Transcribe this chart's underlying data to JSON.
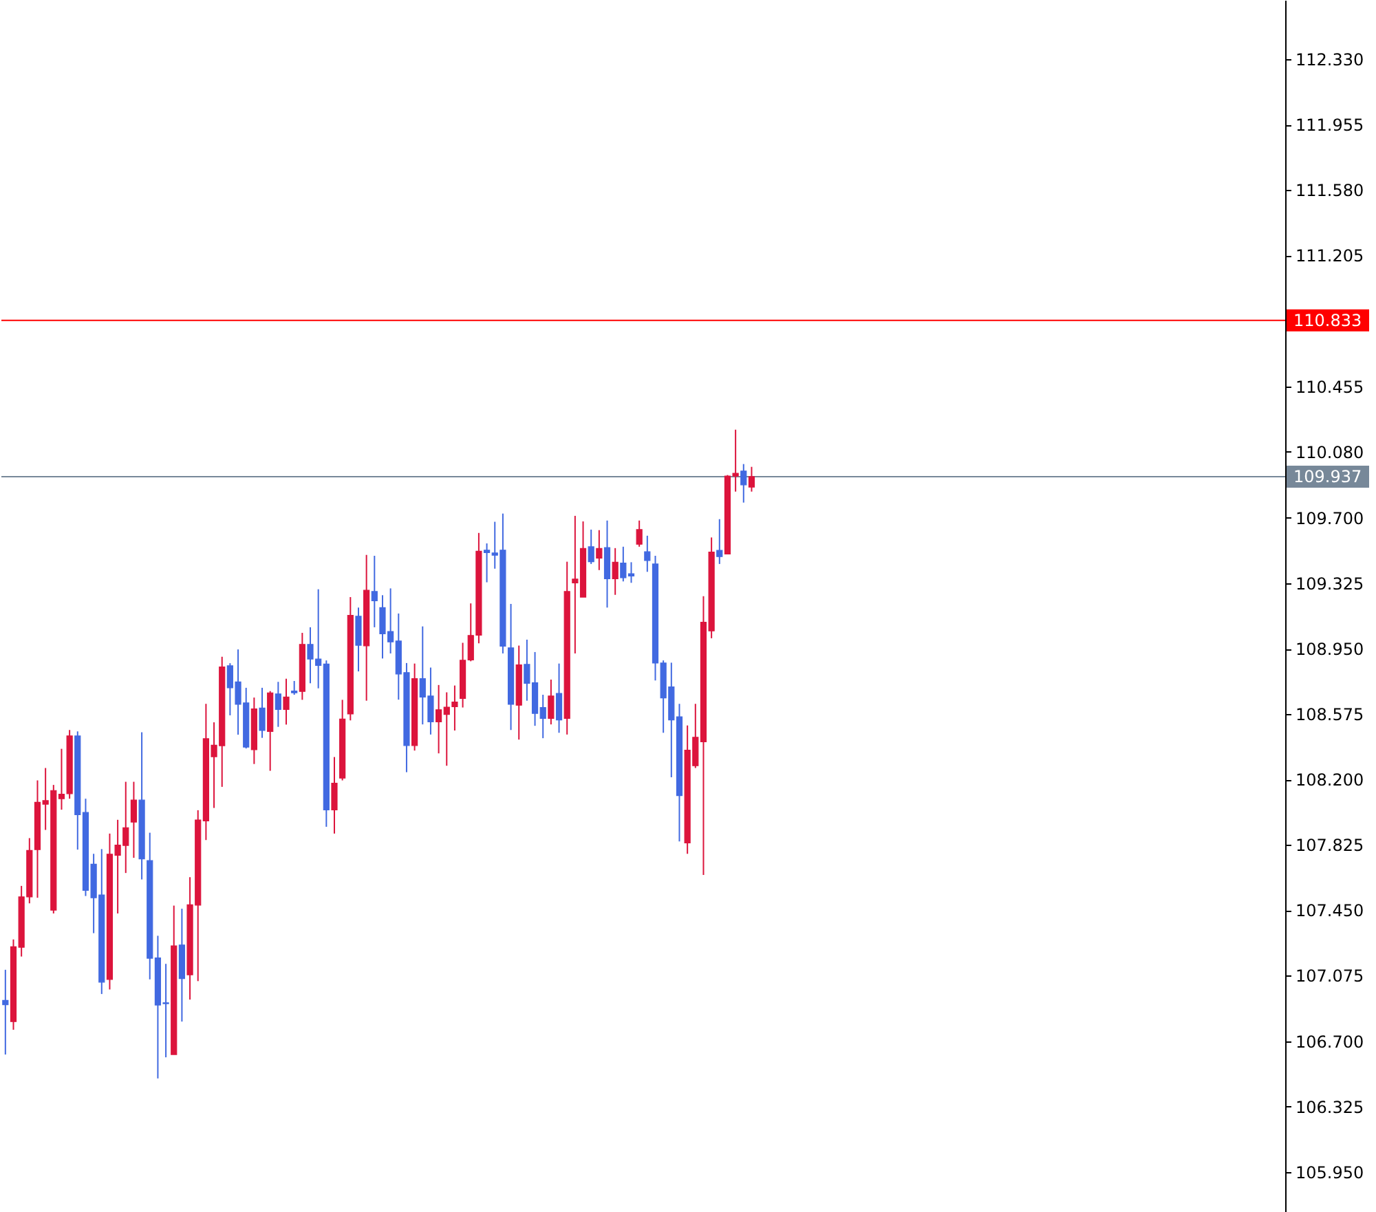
{
  "chart_data": {
    "type": "candlestick",
    "categories": [
      null,
      null,
      null,
      null,
      null,
      null,
      null,
      null,
      null,
      null,
      null,
      null,
      null,
      null,
      null,
      null,
      null,
      null,
      null,
      null,
      null,
      null,
      null,
      null,
      null,
      null,
      null,
      null,
      null,
      null,
      null,
      null,
      null,
      null,
      null,
      null,
      null,
      null,
      null,
      null,
      null,
      null,
      null,
      null,
      null,
      null,
      null,
      null,
      null,
      null,
      null,
      null,
      null,
      null,
      null,
      null,
      null,
      null,
      null,
      null,
      null,
      null,
      null,
      null,
      null,
      null,
      null,
      null,
      null,
      null,
      null,
      null,
      null,
      null,
      null,
      null,
      null,
      null,
      null,
      null,
      null,
      null,
      null,
      null,
      null,
      null,
      null,
      null,
      null,
      null,
      null,
      null,
      null,
      null,
      null,
      null,
      null,
      null,
      null,
      null,
      null,
      null,
      null,
      null,
      null,
      null,
      null,
      null,
      null,
      null,
      null,
      null,
      null,
      null,
      null,
      null,
      null,
      null,
      null,
      null,
      null,
      null,
      null,
      null,
      null,
      null,
      null,
      null,
      null,
      null,
      null,
      null,
      null,
      null,
      null,
      null,
      null,
      null,
      null,
      null,
      null,
      null,
      null,
      null,
      null,
      null,
      null,
      null,
      null,
      null,
      null,
      null,
      null,
      null,
      null,
      null,
      null,
      null,
      null,
      null
    ],
    "ohlc": [
      [
        106.933,
        107.109,
        106.623,
        106.909
      ],
      [
        106.812,
        107.283,
        106.765,
        107.241
      ],
      [
        107.238,
        107.59,
        107.185,
        107.527
      ],
      [
        107.527,
        107.864,
        107.49,
        107.793
      ],
      [
        107.798,
        108.195,
        107.522,
        108.069
      ],
      [
        108.058,
        108.266,
        107.911,
        108.079
      ],
      [
        107.451,
        108.169,
        107.432,
        108.137
      ],
      [
        108.09,
        108.376,
        108.027,
        108.116
      ],
      [
        108.119,
        108.484,
        108.09,
        108.45
      ],
      [
        108.45,
        108.476,
        107.798,
        107.998
      ],
      [
        108.011,
        108.09,
        107.532,
        107.564
      ],
      [
        107.714,
        107.774,
        107.319,
        107.522
      ],
      [
        107.538,
        107.801,
        106.97,
        107.038
      ],
      [
        107.054,
        107.89,
        106.996,
        107.772
      ],
      [
        107.766,
        107.969,
        107.432,
        107.824
      ],
      [
        107.822,
        108.187,
        107.664,
        107.924
      ],
      [
        107.956,
        108.187,
        107.751,
        108.082
      ],
      [
        108.082,
        108.471,
        107.627,
        107.745
      ],
      [
        107.735,
        107.895,
        107.054,
        107.175
      ],
      [
        107.177,
        107.304,
        106.486,
        106.907
      ],
      [
        106.92,
        107.143,
        106.607,
        106.915
      ],
      [
        106.623,
        107.477,
        106.623,
        107.246
      ],
      [
        107.251,
        107.459,
        106.812,
        107.059
      ],
      [
        107.08,
        107.64,
        106.938,
        107.482
      ],
      [
        107.48,
        108.024,
        107.044,
        107.968
      ],
      [
        107.963,
        108.634,
        107.853,
        108.434
      ],
      [
        108.331,
        108.528,
        108.037,
        108.397
      ],
      [
        108.394,
        108.904,
        108.158,
        108.846
      ],
      [
        108.852,
        108.867,
        108.568,
        108.726
      ],
      [
        108.76,
        108.946,
        108.457,
        108.631
      ],
      [
        108.639,
        108.726,
        108.378,
        108.386
      ],
      [
        108.371,
        108.67,
        108.289,
        108.605
      ],
      [
        108.61,
        108.726,
        108.439,
        108.481
      ],
      [
        108.476,
        108.707,
        108.25,
        108.697
      ],
      [
        108.691,
        108.76,
        108.502,
        108.602
      ],
      [
        108.602,
        108.778,
        108.515,
        108.673
      ],
      [
        108.707,
        108.765,
        108.686,
        108.697
      ],
      [
        108.705,
        109.041,
        108.657,
        108.975
      ],
      [
        108.975,
        109.073,
        108.752,
        108.891
      ],
      [
        108.891,
        109.291,
        108.723,
        108.854
      ],
      [
        108.862,
        108.883,
        107.929,
        108.026
      ],
      [
        108.026,
        108.329,
        107.89,
        108.179
      ],
      [
        108.208,
        108.657,
        108.195,
        108.547
      ],
      [
        108.576,
        109.246,
        108.539,
        109.141
      ],
      [
        109.136,
        109.186,
        108.82,
        108.97
      ],
      [
        108.967,
        109.488,
        108.652,
        109.285
      ],
      [
        109.278,
        109.483,
        109.073,
        109.225
      ],
      [
        109.186,
        109.257,
        108.894,
        109.036
      ],
      [
        109.049,
        109.296,
        108.923,
        108.989
      ],
      [
        108.994,
        109.152,
        108.658,
        108.805
      ],
      [
        108.813,
        108.868,
        108.242,
        108.395
      ],
      [
        108.395,
        108.865,
        108.366,
        108.778
      ],
      [
        108.778,
        109.078,
        108.516,
        108.673
      ],
      [
        108.679,
        108.842,
        108.458,
        108.531
      ],
      [
        108.531,
        108.742,
        108.35,
        108.6
      ],
      [
        108.573,
        108.7,
        108.279,
        108.615
      ],
      [
        108.618,
        108.739,
        108.481,
        108.644
      ],
      [
        108.665,
        108.984,
        108.613,
        108.884
      ],
      [
        108.886,
        109.21,
        108.878,
        109.026
      ],
      [
        109.028,
        109.614,
        108.981,
        109.509
      ],
      [
        109.515,
        109.554,
        109.331,
        109.501
      ],
      [
        109.499,
        109.678,
        109.409,
        109.486
      ],
      [
        109.515,
        109.725,
        108.923,
        108.965
      ],
      [
        108.955,
        109.207,
        108.484,
        108.631
      ],
      [
        108.626,
        108.968,
        108.429,
        108.857
      ],
      [
        108.86,
        109.002,
        108.652,
        108.752
      ],
      [
        108.755,
        108.931,
        108.508,
        108.579
      ],
      [
        108.613,
        108.686,
        108.437,
        108.55
      ],
      [
        108.55,
        108.773,
        108.516,
        108.679
      ],
      [
        108.694,
        108.865,
        108.468,
        108.542
      ],
      [
        108.55,
        109.449,
        108.458,
        109.278
      ],
      [
        109.328,
        109.712,
        108.923,
        109.349
      ],
      [
        109.246,
        109.68,
        109.246,
        109.525
      ],
      [
        109.535,
        109.633,
        109.436,
        109.449
      ],
      [
        109.47,
        109.63,
        109.401,
        109.525
      ],
      [
        109.53,
        109.685,
        109.186,
        109.351
      ],
      [
        109.351,
        109.527,
        109.259,
        109.446
      ],
      [
        109.441,
        109.535,
        109.336,
        109.357
      ],
      [
        109.38,
        109.446,
        109.328,
        109.367
      ],
      [
        109.549,
        109.685,
        109.535,
        109.633
      ],
      [
        109.506,
        109.598,
        109.391,
        109.456
      ],
      [
        109.436,
        109.483,
        108.768,
        108.868
      ],
      [
        108.868,
        108.883,
        108.468,
        108.668
      ],
      [
        108.731,
        108.87,
        108.213,
        108.542
      ],
      [
        108.56,
        108.634,
        107.845,
        108.108
      ],
      [
        107.837,
        108.51,
        107.774,
        108.368
      ],
      [
        108.279,
        108.634,
        108.266,
        108.442
      ],
      [
        108.416,
        109.251,
        107.653,
        109.102
      ],
      [
        109.052,
        109.588,
        109.01,
        109.504
      ],
      [
        109.514,
        109.693,
        109.436,
        109.478
      ],
      [
        109.493,
        109.946,
        109.493,
        109.94
      ],
      [
        109.94,
        110.206,
        109.851,
        109.956
      ],
      [
        109.969,
        110.009,
        109.788,
        109.89
      ],
      [
        109.877,
        109.993,
        109.851,
        109.937
      ],
      null,
      null,
      null,
      null,
      null,
      null,
      null,
      null,
      null,
      null,
      null,
      null,
      null,
      null,
      null,
      null,
      null,
      null,
      null,
      null,
      null,
      null,
      null,
      null,
      null,
      null,
      null,
      null,
      null,
      null,
      null,
      null,
      null,
      null,
      null,
      null,
      null,
      null,
      null,
      null,
      null,
      null,
      null,
      null,
      null,
      null,
      null,
      null,
      null,
      null,
      null,
      null,
      null,
      null,
      null,
      null,
      null,
      null,
      null,
      null,
      null,
      null,
      null,
      null,
      null,
      null
    ],
    "colors": [
      "#4169e1",
      "#dc143c",
      "#dc143c",
      "#dc143c",
      "#dc143c",
      "#dc143c",
      "#dc143c",
      "#dc143c",
      "#dc143c",
      "#4169e1",
      "#4169e1",
      "#4169e1",
      "#4169e1",
      "#dc143c",
      "#dc143c",
      "#dc143c",
      "#dc143c",
      "#4169e1",
      "#4169e1",
      "#4169e1",
      "#4169e1",
      "#dc143c",
      "#4169e1",
      "#dc143c",
      "#dc143c",
      "#dc143c",
      "#dc143c",
      "#dc143c",
      "#4169e1",
      "#4169e1",
      "#4169e1",
      "#dc143c",
      "#4169e1",
      "#dc143c",
      "#4169e1",
      "#dc143c",
      "#4169e1",
      "#dc143c",
      "#4169e1",
      "#4169e1",
      "#4169e1",
      "#dc143c",
      "#dc143c",
      "#dc143c",
      "#4169e1",
      "#dc143c",
      "#4169e1",
      "#4169e1",
      "#4169e1",
      "#4169e1",
      "#4169e1",
      "#dc143c",
      "#4169e1",
      "#4169e1",
      "#dc143c",
      "#dc143c",
      "#dc143c",
      "#dc143c",
      "#dc143c",
      "#dc143c",
      "#4169e1",
      "#4169e1",
      "#4169e1",
      "#4169e1",
      "#dc143c",
      "#4169e1",
      "#4169e1",
      "#4169e1",
      "#dc143c",
      "#4169e1",
      "#dc143c",
      "#dc143c",
      "#dc143c",
      "#4169e1",
      "#dc143c",
      "#4169e1",
      "#dc143c",
      "#4169e1",
      "#4169e1",
      "#dc143c",
      "#4169e1",
      "#4169e1",
      "#4169e1",
      "#4169e1",
      "#4169e1",
      "#dc143c",
      "#dc143c",
      "#dc143c",
      "#dc143c",
      "#4169e1",
      "#dc143c",
      "#dc143c",
      "#4169e1",
      "#dc143c",
      null,
      null,
      null,
      null,
      null,
      null,
      null,
      null,
      null,
      null,
      null,
      null,
      null,
      null,
      null,
      null,
      null,
      null,
      null,
      null,
      null,
      null,
      null,
      null,
      null,
      null,
      null,
      null,
      null,
      null,
      null,
      null,
      null,
      null,
      null,
      null,
      null,
      null,
      null,
      null,
      null,
      null,
      null,
      null,
      null,
      null,
      null,
      null,
      null,
      null,
      null,
      null,
      null,
      null,
      null,
      null,
      null,
      null,
      null,
      null,
      null,
      null,
      null,
      null,
      null,
      null
    ],
    "ylim": [
      105.72,
      112.67
    ],
    "yticks": [
      {
        "value": 105.95,
        "label": "105.950"
      },
      {
        "value": 106.325,
        "label": "106.325"
      },
      {
        "value": 106.7,
        "label": "106.700"
      },
      {
        "value": 107.075,
        "label": "107.075"
      },
      {
        "value": 107.45,
        "label": "107.450"
      },
      {
        "value": 107.825,
        "label": "107.825"
      },
      {
        "value": 108.2,
        "label": "108.200"
      },
      {
        "value": 108.575,
        "label": "108.575"
      },
      {
        "value": 108.95,
        "label": "108.950"
      },
      {
        "value": 109.325,
        "label": "109.325"
      },
      {
        "value": 109.7,
        "label": "109.700"
      },
      {
        "value": 110.08,
        "label": "110.080"
      },
      {
        "value": 110.455,
        "label": "110.455"
      },
      {
        "value": 111.205,
        "label": "111.205"
      },
      {
        "value": 111.58,
        "label": "111.580"
      },
      {
        "value": 111.955,
        "label": "111.955"
      },
      {
        "value": 112.33,
        "label": "112.330"
      }
    ],
    "ref_lines": [
      {
        "axis": "y",
        "value": 110.833,
        "label": "110.833",
        "color": "#ff0000"
      },
      {
        "axis": "y",
        "value": 109.937,
        "label": "109.937",
        "color": "#778899"
      }
    ],
    "tick_labels": "y"
  }
}
